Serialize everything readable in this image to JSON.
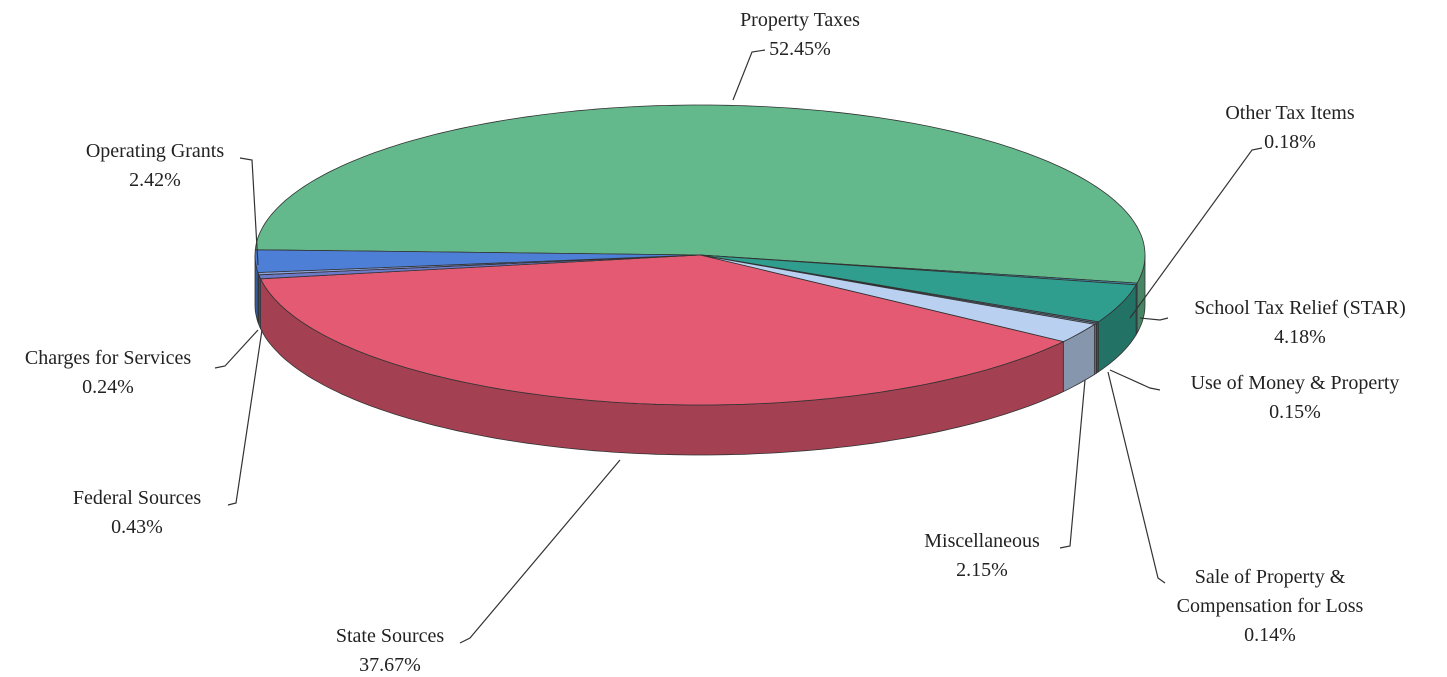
{
  "chart_data": {
    "type": "pie3d",
    "categories": [
      "Property Taxes",
      "Other Tax Items",
      "School Tax Relief (STAR)",
      "Use of Money & Property",
      "Sale of Property & Compensation for Loss",
      "Miscellaneous",
      "State Sources",
      "Federal Sources",
      "Charges for Services",
      "Operating Grants"
    ],
    "values": [
      52.45,
      0.18,
      4.18,
      0.15,
      0.14,
      2.15,
      37.67,
      0.43,
      0.24,
      2.42
    ],
    "value_labels": [
      "52.45%",
      "0.18%",
      "4.18%",
      "0.15%",
      "0.14%",
      "2.15%",
      "37.67%",
      "0.43%",
      "0.24%",
      "2.42%"
    ],
    "colors": [
      "#63b98c",
      "#3f8fb0",
      "#2f9e8e",
      "#5a6f8c",
      "#7f90a8",
      "#b9d0f0",
      "#e35a72",
      "#6d79c9",
      "#8aa3e0",
      "#4e7fd6"
    ]
  }
}
